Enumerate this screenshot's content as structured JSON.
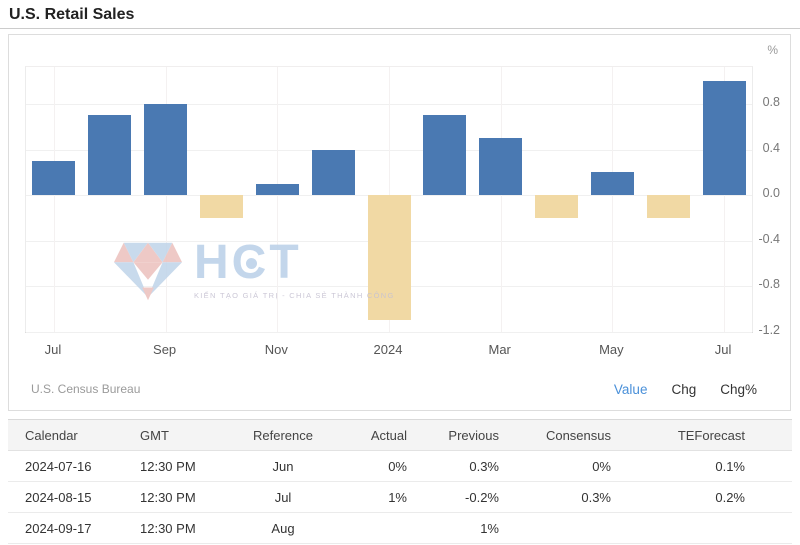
{
  "page": {
    "title": "U.S. Retail Sales"
  },
  "chart": {
    "y_axis_unit": "%",
    "source": "U.S. Census Bureau",
    "modes": [
      {
        "label": "Value",
        "active": true
      },
      {
        "label": "Chg",
        "active": false
      },
      {
        "label": "Chg%",
        "active": false
      }
    ]
  },
  "watermark": {
    "text": "HCT",
    "tagline": "KIẾN TẠO GIÁ TRỊ - CHIA SẺ THÀNH CÔNG"
  },
  "chart_data": {
    "type": "bar",
    "title": "U.S. Retail Sales",
    "ylabel": "%",
    "x": [
      "Jul 2023",
      "Aug 2023",
      "Sep 2023",
      "Oct 2023",
      "Nov 2023",
      "Dec 2023",
      "Jan 2024",
      "Feb 2024",
      "Mar 2024",
      "Apr 2024",
      "May 2024",
      "Jun 2024",
      "Jul 2024"
    ],
    "values": [
      0.3,
      0.7,
      0.8,
      -0.2,
      0.1,
      0.4,
      -1.1,
      0.7,
      0.5,
      -0.2,
      0.2,
      -0.2,
      1.0
    ],
    "x_ticks": [
      {
        "index": 0,
        "label": "Jul"
      },
      {
        "index": 2,
        "label": "Sep"
      },
      {
        "index": 4,
        "label": "Nov"
      },
      {
        "index": 6,
        "label": "2024"
      },
      {
        "index": 8,
        "label": "Mar"
      },
      {
        "index": 10,
        "label": "May"
      },
      {
        "index": 12,
        "label": "Jul"
      }
    ],
    "y_ticks": [
      {
        "value": 0.8,
        "label": "0.8"
      },
      {
        "value": 0.4,
        "label": "0.4"
      },
      {
        "value": 0.0,
        "label": "0.0"
      },
      {
        "value": -0.4,
        "label": "-0.4"
      },
      {
        "value": -0.8,
        "label": "-0.8"
      },
      {
        "value": -1.2,
        "label": "-1.2"
      }
    ],
    "ylim": [
      -1.25,
      1.17
    ],
    "grid": true,
    "legend_position": "none",
    "colors": {
      "positive": "#4a79b2",
      "negative": "#f1d9a4"
    },
    "source": "U.S. Census Bureau"
  },
  "table": {
    "headers": [
      "Calendar",
      "GMT",
      "Reference",
      "Actual",
      "Previous",
      "Consensus",
      "TEForecast"
    ],
    "rows": [
      [
        "2024-07-16",
        "12:30 PM",
        "Jun",
        "0%",
        "0.3%",
        "0%",
        "0.1%"
      ],
      [
        "2024-08-15",
        "12:30 PM",
        "Jul",
        "1%",
        "-0.2%",
        "0.3%",
        "0.2%"
      ],
      [
        "2024-09-17",
        "12:30 PM",
        "Aug",
        "",
        "1%",
        "",
        ""
      ]
    ]
  }
}
